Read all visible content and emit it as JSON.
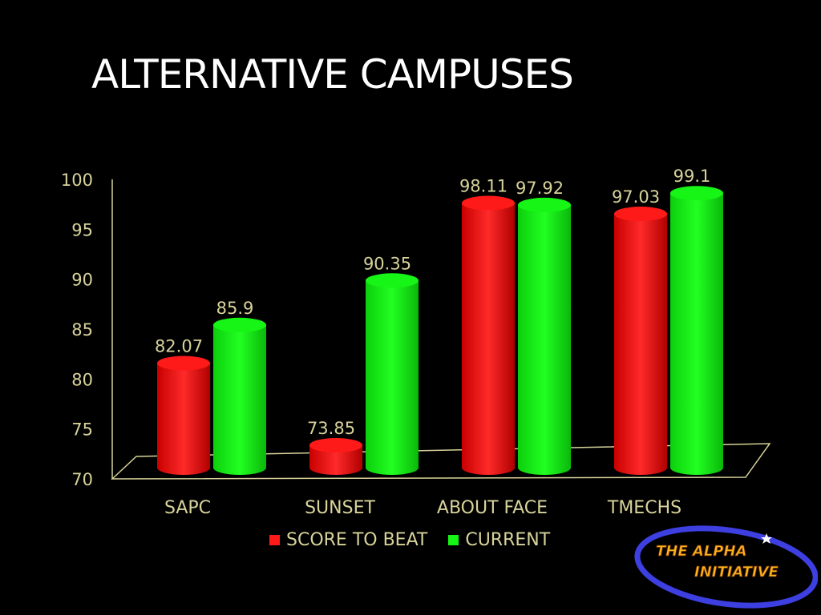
{
  "title": "ALTERNATIVE CAMPUSES",
  "colors": {
    "background": "#000000",
    "title": "#ffffff",
    "axis_text": "#d8d39a",
    "score_to_beat": "#ff1a1a",
    "current": "#16f516",
    "logo_ring": "#3d3fe0",
    "logo_text": "#ffb21c"
  },
  "chart_data": {
    "type": "bar",
    "style": "3d-cylinder",
    "categories": [
      "SAPC",
      "SUNSET",
      "ABOUT FACE",
      "TMECHS"
    ],
    "series": [
      {
        "name": "SCORE TO BEAT",
        "values": [
          82.07,
          73.85,
          98.11,
          97.03
        ],
        "labels": [
          "82.07",
          "73.85",
          "98.11",
          "97.03"
        ]
      },
      {
        "name": "CURRENT",
        "values": [
          85.9,
          90.35,
          97.92,
          99.1
        ],
        "labels": [
          "85.9",
          "90.35",
          "97.92",
          "99.1"
        ]
      }
    ],
    "ylim": [
      70,
      100
    ],
    "yticks": [
      "70",
      "75",
      "80",
      "85",
      "90",
      "95",
      "100"
    ],
    "grid": false,
    "legend": "bottom"
  },
  "legend": [
    {
      "label": "SCORE TO BEAT",
      "color_key": "score_to_beat"
    },
    {
      "label": "CURRENT",
      "color_key": "current"
    }
  ],
  "logo": {
    "line1": "THE ALPHA",
    "line2": "INITIATIVE"
  }
}
